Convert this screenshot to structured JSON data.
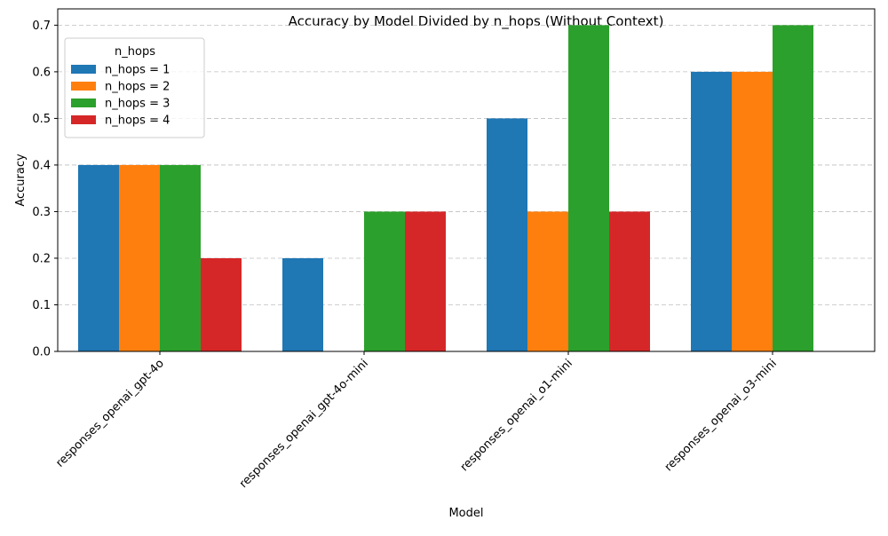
{
  "chart_data": {
    "type": "bar",
    "title": "Accuracy by Model Divided by n_hops (Without Context)",
    "xlabel": "Model",
    "ylabel": "Accuracy",
    "categories": [
      "responses_openai_gpt-4o",
      "responses_openai_gpt-4o-mini",
      "responses_openai_o1-mini",
      "responses_openai_o3-mini"
    ],
    "series": [
      {
        "name": "n_hops = 1",
        "color": "#1f77b4",
        "values": [
          0.4,
          0.2,
          0.5,
          0.6
        ]
      },
      {
        "name": "n_hops = 2",
        "color": "#ff7f0e",
        "values": [
          0.4,
          0.0,
          0.3,
          0.6
        ]
      },
      {
        "name": "n_hops = 3",
        "color": "#2ca02c",
        "values": [
          0.4,
          0.3,
          0.7,
          0.7
        ]
      },
      {
        "name": "n_hops = 4",
        "color": "#d62728",
        "values": [
          0.2,
          0.3,
          0.3,
          0.0
        ]
      }
    ],
    "ylim": [
      0,
      0.735
    ],
    "yticks": [
      "0.0",
      "0.1",
      "0.2",
      "0.3",
      "0.4",
      "0.5",
      "0.6",
      "0.7"
    ],
    "grid": "y-dashed",
    "legend": {
      "title": "n_hops",
      "position": "top-left"
    },
    "x_tick_rotation": 45
  }
}
